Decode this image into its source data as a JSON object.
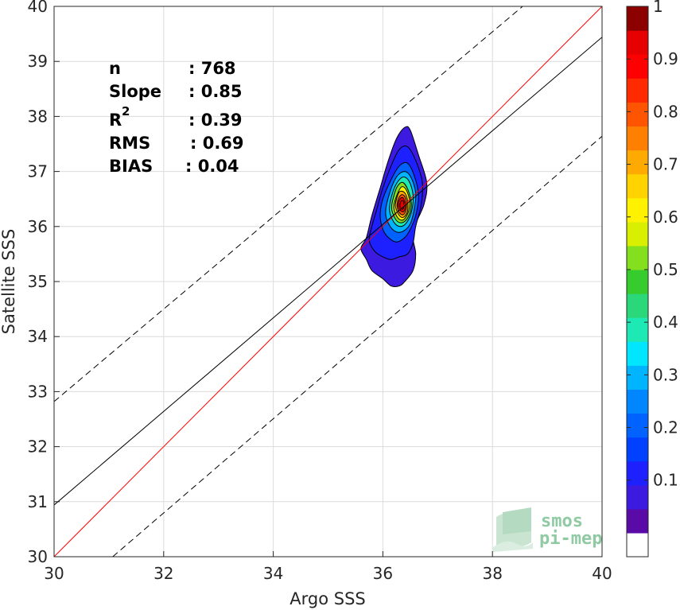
{
  "chart_data": {
    "type": "heatmap",
    "subtype": "density-contour-scatter",
    "xlabel": "Argo SSS",
    "ylabel": "Satellite SSS",
    "xlim": [
      30,
      40
    ],
    "ylim": [
      30,
      40
    ],
    "xticks": [
      "30",
      "32",
      "34",
      "36",
      "38",
      "40"
    ],
    "yticks": [
      "30",
      "31",
      "32",
      "33",
      "34",
      "35",
      "36",
      "37",
      "38",
      "39",
      "40"
    ],
    "grid": true,
    "stats": {
      "n_label": "n",
      "n_value": ": 768",
      "slope_label": "Slope",
      "slope_value": ": 0.85",
      "r2_label": "R",
      "r2_sup": "2",
      "r2_value": ": 0.39",
      "rms_label": "RMS",
      "rms_value": ": 0.69",
      "bias_label": "BIAS",
      "bias_value": ": 0.04"
    },
    "lines": {
      "identity": {
        "x": [
          30,
          40
        ],
        "y": [
          30,
          40
        ],
        "color": "#ff0000"
      },
      "fit": {
        "x": [
          30,
          40
        ],
        "y": [
          30.94,
          39.44
        ],
        "color": "#000000"
      },
      "upper_bound": {
        "x": [
          30,
          38.55
        ],
        "y": [
          32.82,
          40
        ],
        "color": "#000000",
        "dashed": true
      },
      "lower_bound": {
        "x": [
          31.07,
          40
        ],
        "y": [
          30,
          37.64
        ],
        "color": "#000000",
        "dashed": true
      }
    },
    "density_peak": {
      "x": 36.35,
      "y": 36.35
    },
    "contour_levels": [
      {
        "level": 0.05,
        "x": [
          35.7,
          35.6,
          35.7,
          35.8,
          36.0,
          36.15,
          36.3,
          36.4,
          36.55,
          36.6,
          36.55,
          36.75,
          36.8,
          36.65,
          36.5,
          36.4,
          36.25,
          36.1,
          35.95,
          35.8
        ],
        "y": [
          35.8,
          35.6,
          35.4,
          35.2,
          35.05,
          34.92,
          34.92,
          35.0,
          35.2,
          35.5,
          35.9,
          36.4,
          36.8,
          37.3,
          37.75,
          37.8,
          37.6,
          37.2,
          36.7,
          36.2
        ]
      },
      {
        "level": 0.1,
        "x": [
          35.8,
          35.75,
          35.85,
          36.0,
          36.15,
          36.3,
          36.45,
          36.55,
          36.6,
          36.7,
          36.72,
          36.6,
          36.45,
          36.3,
          36.15,
          36.0,
          35.9
        ],
        "y": [
          36.0,
          35.75,
          35.55,
          35.45,
          35.4,
          35.45,
          35.5,
          35.7,
          36.0,
          36.4,
          36.8,
          37.2,
          37.45,
          37.4,
          37.1,
          36.7,
          36.35
        ]
      },
      {
        "level": 0.2,
        "x": [
          35.95,
          36.0,
          36.1,
          36.25,
          36.4,
          36.5,
          36.6,
          36.65,
          36.58,
          36.45,
          36.3,
          36.15,
          36.0
        ],
        "y": [
          36.2,
          35.95,
          35.8,
          35.72,
          35.8,
          35.95,
          36.2,
          36.55,
          36.9,
          37.15,
          37.1,
          36.85,
          36.5
        ]
      },
      {
        "level": 0.3,
        "x": [
          36.05,
          36.12,
          36.25,
          36.38,
          36.5,
          36.57,
          36.6,
          36.52,
          36.4,
          36.25,
          36.12
        ],
        "y": [
          36.25,
          36.02,
          35.9,
          35.92,
          36.05,
          36.3,
          36.6,
          36.88,
          37.0,
          36.9,
          36.6
        ]
      },
      {
        "level": 0.4,
        "x": [
          36.12,
          36.2,
          36.32,
          36.44,
          36.53,
          36.55,
          36.48,
          36.37,
          36.25,
          36.16
        ],
        "y": [
          36.3,
          36.08,
          36.0,
          36.08,
          36.3,
          36.58,
          36.82,
          36.9,
          36.78,
          36.55
        ]
      },
      {
        "level": 0.5,
        "x": [
          36.16,
          36.24,
          36.35,
          36.46,
          36.52,
          36.46,
          36.36,
          36.26,
          36.19
        ],
        "y": [
          36.32,
          36.12,
          36.07,
          36.17,
          36.4,
          36.66,
          36.8,
          36.72,
          36.52
        ]
      },
      {
        "level": 0.6,
        "x": [
          36.2,
          36.27,
          36.37,
          36.46,
          36.49,
          36.43,
          36.34,
          36.25
        ],
        "y": [
          36.35,
          36.16,
          36.12,
          36.25,
          36.45,
          36.66,
          36.72,
          36.55
        ]
      },
      {
        "level": 0.7,
        "x": [
          36.23,
          36.3,
          36.38,
          36.45,
          36.45,
          36.39,
          36.3,
          36.25
        ],
        "y": [
          36.36,
          36.2,
          36.17,
          36.28,
          36.48,
          36.62,
          36.63,
          36.5
        ]
      },
      {
        "level": 0.8,
        "x": [
          36.26,
          36.31,
          36.38,
          36.43,
          36.42,
          36.36,
          36.29
        ],
        "y": [
          36.37,
          36.24,
          36.22,
          36.33,
          36.5,
          36.58,
          36.52
        ]
      },
      {
        "level": 0.9,
        "x": [
          36.28,
          36.33,
          36.39,
          36.41,
          36.37,
          36.31
        ],
        "y": [
          36.38,
          36.28,
          36.28,
          36.4,
          36.52,
          36.5
        ]
      },
      {
        "level": 0.95,
        "x": [
          36.31,
          36.35,
          36.38,
          36.38,
          36.34
        ],
        "y": [
          36.38,
          36.31,
          36.35,
          36.45,
          36.47
        ]
      }
    ],
    "colorbar": {
      "ticks": [
        "0.1",
        "0.2",
        "0.3",
        "0.4",
        "0.5",
        "0.6",
        "0.7",
        "0.8",
        "0.9",
        "1"
      ],
      "range": [
        0,
        1
      ],
      "colors": [
        "#ffffff",
        "#5a0aa6",
        "#3c1adf",
        "#1e21ff",
        "#0040ff",
        "#0062ff",
        "#0086ff",
        "#00b4ff",
        "#00e6ff",
        "#1ee8b4",
        "#2ad87a",
        "#36cc2e",
        "#84e01e",
        "#d8f000",
        "#fff200",
        "#ffd200",
        "#ffaa00",
        "#ff8000",
        "#ff5400",
        "#ff2a00",
        "#ff0000",
        "#e60000",
        "#8c0000"
      ]
    }
  },
  "logo": {
    "line1": "smos",
    "line2": "pi-mep"
  }
}
